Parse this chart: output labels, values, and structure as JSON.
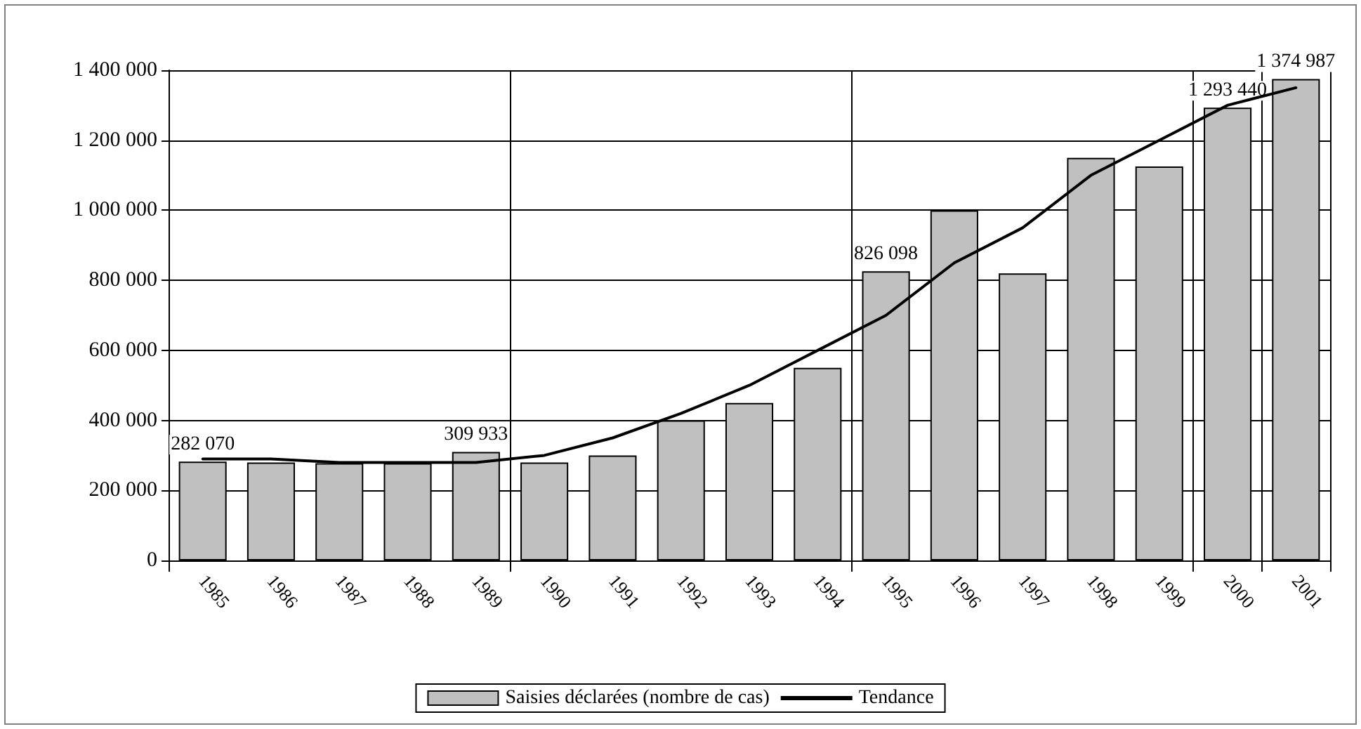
{
  "chart_data": {
    "type": "bar",
    "categories": [
      "1985",
      "1986",
      "1987",
      "1988",
      "1989",
      "1990",
      "1991",
      "1992",
      "1993",
      "1994",
      "1995",
      "1996",
      "1997",
      "1998",
      "1999",
      "2000",
      "2001"
    ],
    "series": [
      {
        "name": "Saisies déclarées (nombre de cas)",
        "color": "#c0c0c0",
        "values": [
          282070,
          280000,
          278000,
          278000,
          309933,
          280000,
          300000,
          400000,
          450000,
          550000,
          826098,
          1000000,
          820000,
          1150000,
          1125000,
          1293440,
          1374987
        ],
        "value_labels": [
          "282 070",
          null,
          null,
          null,
          "309 933",
          null,
          null,
          null,
          null,
          null,
          "826 098",
          null,
          null,
          null,
          null,
          "1 293 440",
          "1 374 987"
        ]
      },
      {
        "name": "Tendance",
        "type": "line",
        "color": "#000000",
        "marker": "none",
        "line_style": "solid",
        "values": [
          290000,
          290000,
          280000,
          280000,
          280000,
          300000,
          350000,
          420000,
          500000,
          600000,
          700000,
          850000,
          950000,
          1100000,
          1200000,
          1300000,
          1350000
        ]
      }
    ],
    "ylim": [
      0,
      1400000
    ],
    "yticks": [
      {
        "value": 0,
        "label": "0"
      },
      {
        "value": 200000,
        "label": "200 000"
      },
      {
        "value": 400000,
        "label": "400 000"
      },
      {
        "value": 600000,
        "label": "600 000"
      },
      {
        "value": 800000,
        "label": "800 000"
      },
      {
        "value": 1000000,
        "label": "1 000 000"
      },
      {
        "value": 1200000,
        "label": "1 200 000"
      },
      {
        "value": 1400000,
        "label": "1 400 000"
      }
    ],
    "grid": true,
    "legend": "bottom"
  }
}
